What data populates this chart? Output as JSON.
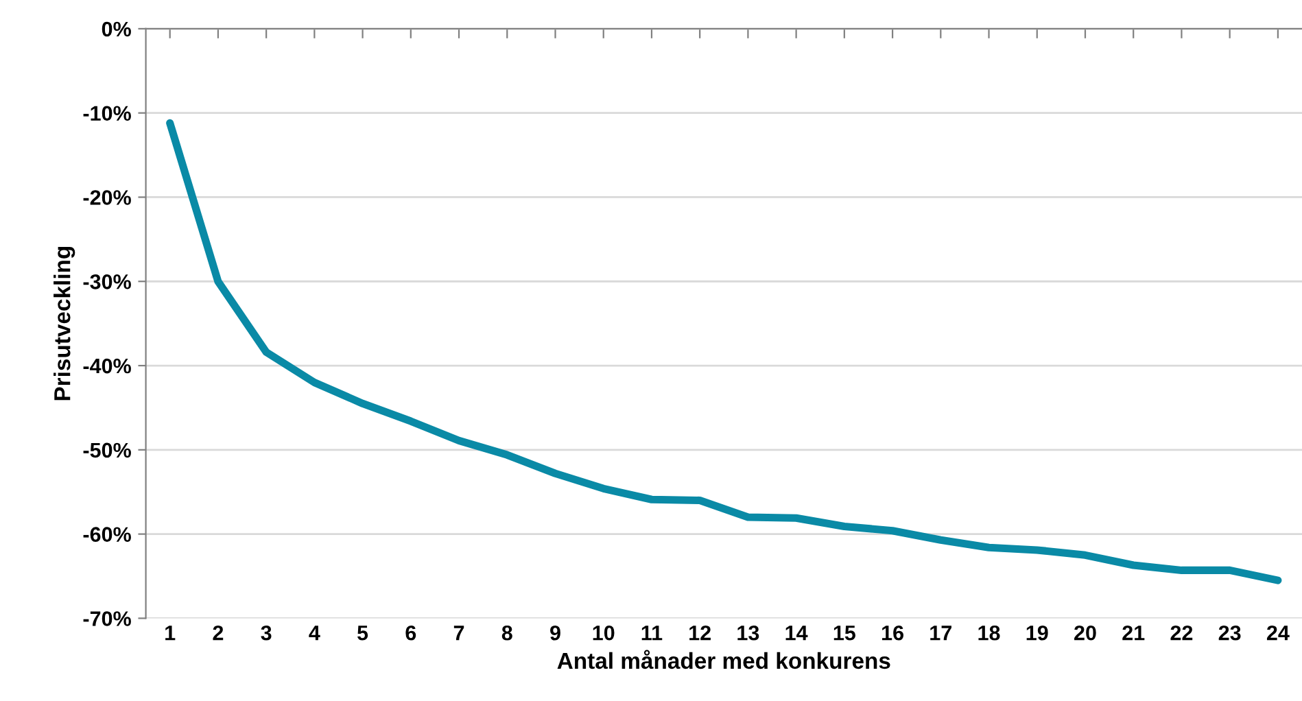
{
  "chart_data": {
    "type": "line",
    "xlabel": "Antal månader med konkurens",
    "ylabel": "Prisutveckling",
    "categories": [
      "1",
      "2",
      "3",
      "4",
      "5",
      "6",
      "7",
      "8",
      "9",
      "10",
      "11",
      "12",
      "13",
      "14",
      "15",
      "16",
      "17",
      "18",
      "19",
      "20",
      "21",
      "22",
      "23",
      "24"
    ],
    "series": [
      {
        "color": "#0a8aa6",
        "values": [
          -11.2,
          -30,
          -38.4,
          -42,
          -44.5,
          -46.6,
          -48.9,
          -50.6,
          -52.8,
          -54.6,
          -55.9,
          -56,
          -58,
          -58.1,
          -59.1,
          -59.6,
          -60.7,
          -61.6,
          -61.9,
          -62.5,
          -63.7,
          -64.3,
          -64.3,
          -65.5
        ]
      }
    ],
    "ylim": [
      -70,
      0
    ],
    "yticks": [
      {
        "value": -70,
        "label": "-70%"
      },
      {
        "value": -60,
        "label": "-60%"
      },
      {
        "value": -50,
        "label": "-50%"
      },
      {
        "value": -40,
        "label": "-40%"
      },
      {
        "value": -30,
        "label": "-30%"
      },
      {
        "value": -20,
        "label": "-20%"
      },
      {
        "value": -10,
        "label": "-10%"
      },
      {
        "value": 0,
        "label": "0%"
      }
    ],
    "grid": "y",
    "marker": "none",
    "line_style": "solid"
  }
}
